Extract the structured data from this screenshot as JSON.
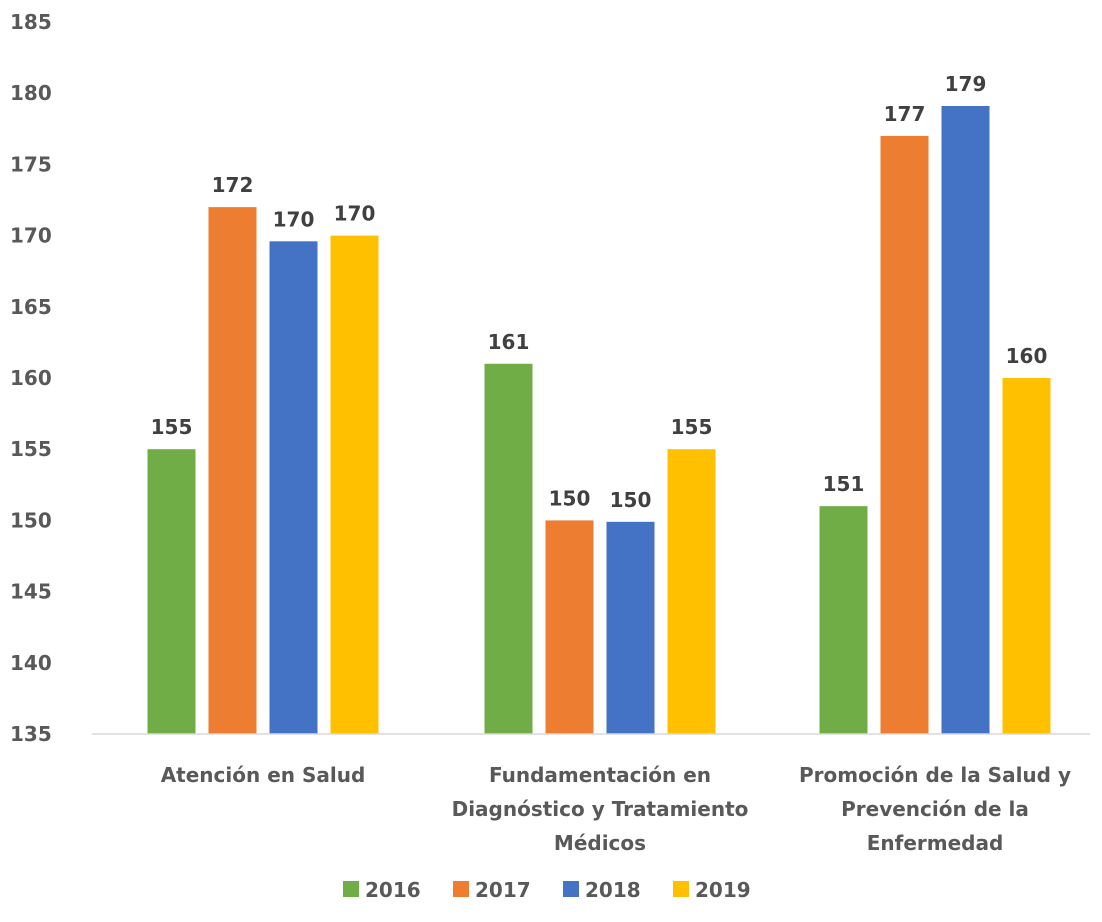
{
  "chart_data": {
    "type": "bar",
    "categories": [
      [
        "Atención en Salud"
      ],
      [
        "Fundamentación en",
        "Diagnóstico y Tratamiento",
        "Médicos"
      ],
      [
        "Promoción de la Salud y",
        "Prevención de la",
        "Enfermedad"
      ]
    ],
    "series": [
      {
        "name": "2016",
        "color": "#70AD47",
        "values": [
          155,
          161,
          151
        ]
      },
      {
        "name": "2017",
        "color": "#ED7D31",
        "values": [
          172,
          150,
          177
        ]
      },
      {
        "name": "2018",
        "color": "#4472C4",
        "values": [
          169.6,
          149.9,
          179.1
        ]
      },
      {
        "name": "2019",
        "color": "#FFC000",
        "values": [
          170,
          155,
          160
        ]
      }
    ],
    "data_labels": [
      [
        "155",
        "161",
        "151"
      ],
      [
        "172",
        "150",
        "177"
      ],
      [
        "170",
        "150",
        "179"
      ],
      [
        "170",
        "155",
        "160"
      ]
    ],
    "y_ticks": [
      "135",
      "140",
      "145",
      "150",
      "155",
      "160",
      "165",
      "170",
      "175",
      "180",
      "185"
    ],
    "ylim": [
      135,
      185
    ],
    "title": "",
    "xlabel": "",
    "ylabel": "",
    "grid": false,
    "legend_position": "bottom"
  }
}
